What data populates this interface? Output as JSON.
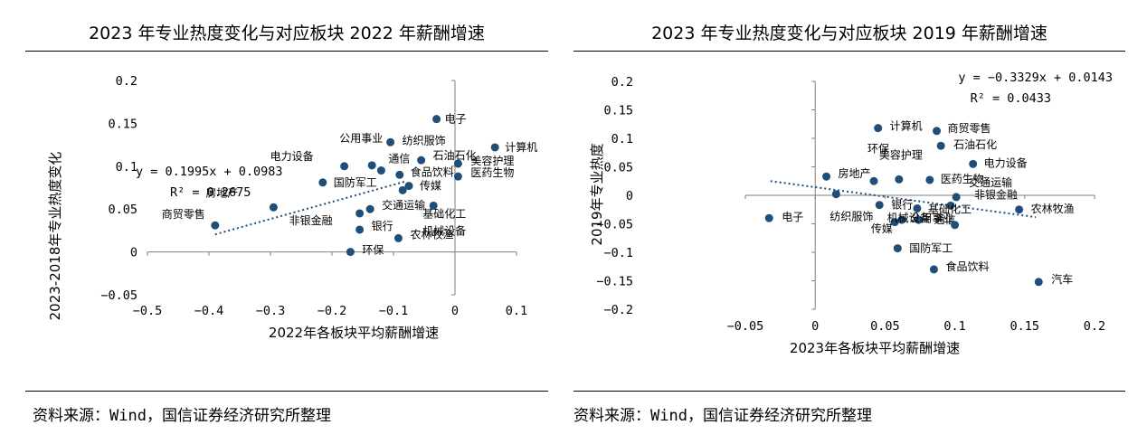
{
  "charts": [
    {
      "title": "2023 年专业热度变化与对应板块 2022 年薪酬增速",
      "source": "资料来源：Wind，国信证券经济研究所整理",
      "equation": "y = 0.1995x + 0.0983",
      "r2": "R² = 0.2675",
      "xlabel": "2022年各板块平均薪酬增速",
      "ylabel": "2023-2018年专业热度变化",
      "x_ticks": [
        "−0.5",
        "−0.4",
        "−0.3",
        "−0.2",
        "−0.1",
        "0",
        "0.1"
      ],
      "y_ticks": [
        "−0.05",
        "0",
        "0.05",
        "0.1",
        "0.15",
        "0.2"
      ]
    },
    {
      "title": "2023 年专业热度变化与对应板块 2019 年薪酬增速",
      "source": "资料来源：Wind，国信证券经济研究所整理",
      "equation": "y = −0.3329x + 0.0143",
      "r2": "R² = 0.0433",
      "xlabel": "2023年各板块平均薪酬增速",
      "ylabel": "2019年专业热度",
      "x_ticks": [
        "−0.05",
        "0",
        "0.05",
        "0.1",
        "0.15",
        "0.2"
      ],
      "y_ticks": [
        "−0.2",
        "−0.15",
        "−0.1",
        "−0.05",
        "0",
        "0.05",
        "0.1",
        "0.15",
        "0.2"
      ]
    }
  ],
  "chart_data": [
    {
      "type": "scatter",
      "title": "2023 年专业热度变化与对应板块 2022 年薪酬增速",
      "xlabel": "2022年各板块平均薪酬增速",
      "ylabel": "2023-2018年专业热度变化",
      "xlim": [
        -0.5,
        0.1
      ],
      "ylim": [
        -0.05,
        0.2
      ],
      "marker_color": "#1f4e79",
      "trendline": {
        "slope": 0.1995,
        "intercept": 0.0983,
        "x_range": [
          -0.39,
          -0.08
        ]
      },
      "points": [
        {
          "name": "电子",
          "x": -0.03,
          "y": 0.155
        },
        {
          "name": "计算机",
          "x": 0.065,
          "y": 0.122
        },
        {
          "name": "纺织服饰",
          "x": -0.105,
          "y": 0.128
        },
        {
          "name": "公用事业",
          "x": -0.135,
          "y": 0.101
        },
        {
          "name": "电力设备",
          "x": -0.18,
          "y": 0.1
        },
        {
          "name": "通信",
          "x": -0.12,
          "y": 0.095
        },
        {
          "name": "石油石化",
          "x": -0.055,
          "y": 0.107
        },
        {
          "name": "美容护理",
          "x": 0.005,
          "y": 0.103
        },
        {
          "name": "食品饮料",
          "x": -0.09,
          "y": 0.09
        },
        {
          "name": "医药生物",
          "x": 0.005,
          "y": 0.088
        },
        {
          "name": "国防军工",
          "x": -0.215,
          "y": 0.081
        },
        {
          "name": "传媒",
          "x": -0.075,
          "y": 0.077
        },
        {
          "name": "基础化工",
          "x": -0.085,
          "y": 0.072
        },
        {
          "name": "房地产",
          "x": -0.295,
          "y": 0.052
        },
        {
          "name": "机械设备",
          "x": -0.035,
          "y": 0.054
        },
        {
          "name": "交通运输",
          "x": -0.138,
          "y": 0.05
        },
        {
          "name": "商贸零售",
          "x": -0.39,
          "y": 0.031
        },
        {
          "name": "非银金融",
          "x": -0.155,
          "y": 0.045
        },
        {
          "name": "银行",
          "x": -0.155,
          "y": 0.026
        },
        {
          "name": "农林牧渔",
          "x": -0.092,
          "y": 0.016
        },
        {
          "name": "环保",
          "x": -0.17,
          "y": 0.0
        }
      ]
    },
    {
      "type": "scatter",
      "title": "2023 年专业热度变化与对应板块 2019 年薪酬增速",
      "xlabel": "2023年各板块平均薪酬增速",
      "ylabel": "2019年专业热度",
      "xlim": [
        -0.05,
        0.2
      ],
      "ylim": [
        -0.2,
        0.2
      ],
      "marker_color": "#1f4e79",
      "trendline": {
        "slope": -0.3329,
        "intercept": 0.0143,
        "x_range": [
          -0.032,
          0.158
        ]
      },
      "points": [
        {
          "name": "计算机",
          "x": 0.045,
          "y": 0.118
        },
        {
          "name": "商贸零售",
          "x": 0.087,
          "y": 0.113
        },
        {
          "name": "石油石化",
          "x": 0.09,
          "y": 0.087
        },
        {
          "name": "电力设备",
          "x": 0.113,
          "y": 0.055
        },
        {
          "name": "房地产",
          "x": 0.008,
          "y": 0.033
        },
        {
          "name": "美容护理",
          "x": 0.06,
          "y": 0.028
        },
        {
          "name": "医药生物",
          "x": 0.082,
          "y": 0.027
        },
        {
          "name": "环保",
          "x": 0.042,
          "y": 0.025
        },
        {
          "name": "交通运输",
          "x": 0.101,
          "y": -0.003
        },
        {
          "name": "非银金融",
          "x": 0.097,
          "y": -0.018
        },
        {
          "name": "纺织服饰",
          "x": 0.015,
          "y": 0.002
        },
        {
          "name": "银行",
          "x": 0.046,
          "y": -0.017
        },
        {
          "name": "基础化工",
          "x": 0.073,
          "y": -0.023
        },
        {
          "name": "农林牧渔",
          "x": 0.146,
          "y": -0.025
        },
        {
          "name": "电子",
          "x": -0.033,
          "y": -0.04
        },
        {
          "name": "传媒",
          "x": 0.062,
          "y": -0.043
        },
        {
          "name": "公用事业",
          "x": 0.057,
          "y": -0.047
        },
        {
          "name": "通信",
          "x": 0.074,
          "y": -0.043
        },
        {
          "name": "机械设备",
          "x": 0.1,
          "y": -0.052
        },
        {
          "name": "国防军工",
          "x": 0.059,
          "y": -0.093
        },
        {
          "name": "食品饮料",
          "x": 0.085,
          "y": -0.13
        },
        {
          "name": "汽车",
          "x": 0.16,
          "y": -0.152
        }
      ]
    }
  ]
}
